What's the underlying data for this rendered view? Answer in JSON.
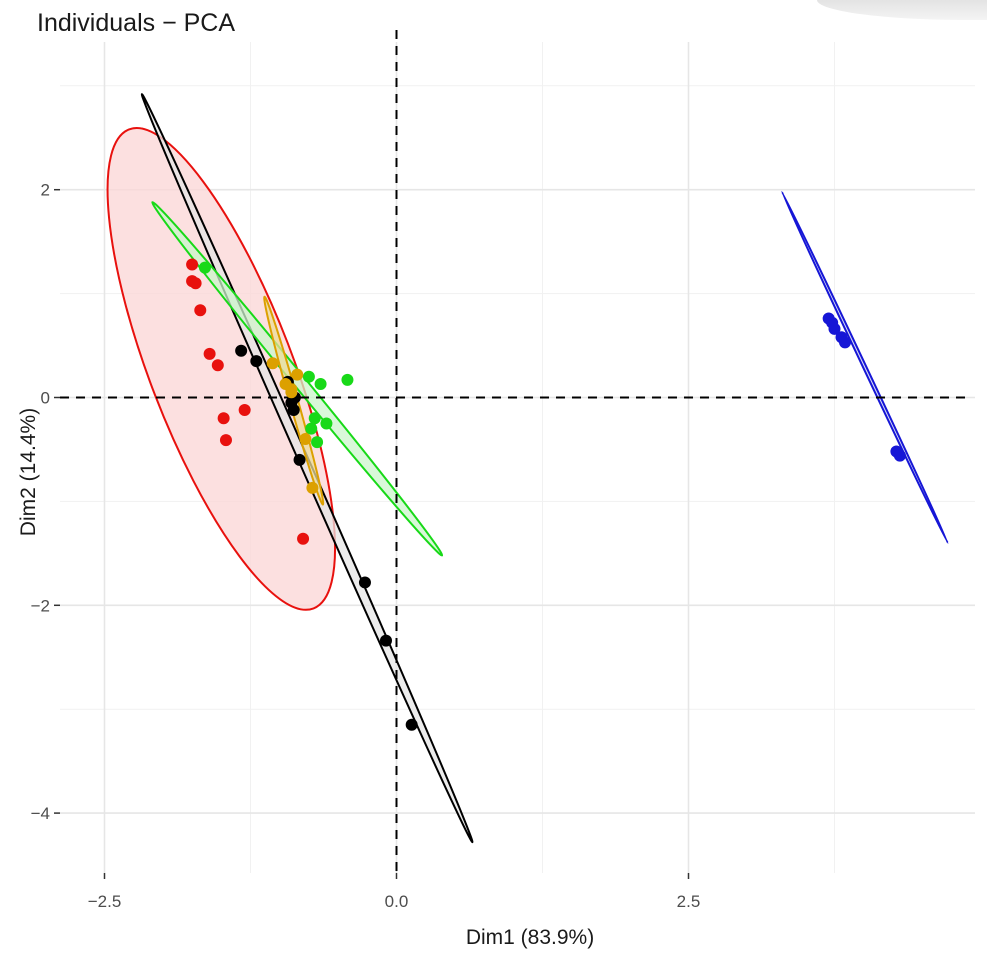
{
  "chart_data": {
    "type": "scatter",
    "title": "Individuals − PCA",
    "xlabel": "Dim1 (83.9%)",
    "ylabel": "Dim2 (14.4%)",
    "xlim": [
      -2.6,
      4.4
    ],
    "ylim": [
      -4.75,
      3.0
    ],
    "xticks": [
      {
        "value": -2.5,
        "label": "−2.5"
      },
      {
        "value": 0.0,
        "label": "0.0"
      },
      {
        "value": 2.5,
        "label": "2.5"
      }
    ],
    "yticks": [
      {
        "value": -4,
        "label": "−4"
      },
      {
        "value": -2,
        "label": "−2"
      },
      {
        "value": 0,
        "label": "0"
      },
      {
        "value": 2,
        "label": "2"
      }
    ],
    "grid": true,
    "reference_lines": {
      "x": 0,
      "y": 0,
      "style": "dashed"
    },
    "series": [
      {
        "color": "#e8110e",
        "fill": "#fbd5d5",
        "ellipse": {
          "points": [
            [
              -2.29,
              2.58
            ],
            [
              -1.23,
              -0.34
            ],
            [
              -0.71,
              -2.03
            ],
            [
              -1.77,
              0.89
            ]
          ]
        },
        "points": [
          [
            -1.75,
            1.28
          ],
          [
            -1.75,
            1.12
          ],
          [
            -1.72,
            1.1
          ],
          [
            -1.68,
            0.84
          ],
          [
            -1.6,
            0.42
          ],
          [
            -1.53,
            0.31
          ],
          [
            -1.48,
            -0.2
          ],
          [
            -1.46,
            -0.41
          ],
          [
            -1.3,
            -0.12
          ],
          [
            -0.8,
            -1.36
          ]
        ]
      },
      {
        "color": "#000000",
        "fill": "#e6e6e6",
        "ellipse": {
          "points": [
            [
              -2.18,
              2.92
            ],
            [
              -0.75,
              -0.63
            ],
            [
              0.65,
              -4.28
            ],
            [
              -0.77,
              -0.72
            ]
          ]
        },
        "points": [
          [
            -1.33,
            0.45
          ],
          [
            -1.2,
            0.35
          ],
          [
            -0.93,
            0.15
          ],
          [
            -0.9,
            -0.05
          ],
          [
            -0.88,
            -0.12
          ],
          [
            -0.87,
            0.0
          ],
          [
            -0.83,
            -0.6
          ],
          [
            -0.27,
            -1.78
          ],
          [
            -0.09,
            -2.34
          ],
          [
            0.13,
            -3.15
          ]
        ]
      },
      {
        "color": "#18d918",
        "fill": "#ccf5cc",
        "ellipse": {
          "points": [
            [
              -2.09,
              1.88
            ],
            [
              -0.86,
              0.24
            ],
            [
              0.39,
              -1.52
            ],
            [
              -0.86,
              0.12
            ]
          ]
        },
        "points": [
          [
            -1.64,
            1.25
          ],
          [
            -0.75,
            0.2
          ],
          [
            -0.65,
            0.13
          ],
          [
            -0.42,
            0.17
          ],
          [
            -0.7,
            -0.2
          ],
          [
            -0.73,
            -0.3
          ],
          [
            -0.68,
            -0.43
          ],
          [
            -0.6,
            -0.25
          ]
        ]
      },
      {
        "color": "#dca000",
        "fill": "#ecdc9a",
        "ellipse": {
          "points": [
            [
              -1.13,
              0.97
            ],
            [
              -0.88,
              0.05
            ],
            [
              -0.63,
              -1.03
            ],
            [
              -0.88,
              -0.03
            ]
          ]
        },
        "points": [
          [
            -1.06,
            0.33
          ],
          [
            -0.95,
            0.13
          ],
          [
            -0.9,
            0.08
          ],
          [
            -0.85,
            0.22
          ],
          [
            -0.9,
            0.05
          ],
          [
            -0.78,
            -0.4
          ],
          [
            -0.72,
            -0.87
          ]
        ]
      },
      {
        "color": "#1616d6",
        "fill": "#c9cff2",
        "ellipse": {
          "points": [
            [
              3.3,
              1.98
            ],
            [
              4.02,
              0.28
            ],
            [
              4.72,
              -1.4
            ],
            [
              4.02,
              0.31
            ]
          ]
        },
        "points": [
          [
            3.7,
            0.76
          ],
          [
            3.73,
            0.72
          ],
          [
            3.75,
            0.66
          ],
          [
            3.81,
            0.58
          ],
          [
            3.84,
            0.53
          ],
          [
            4.28,
            -0.52
          ],
          [
            4.31,
            -0.56
          ]
        ]
      }
    ]
  }
}
